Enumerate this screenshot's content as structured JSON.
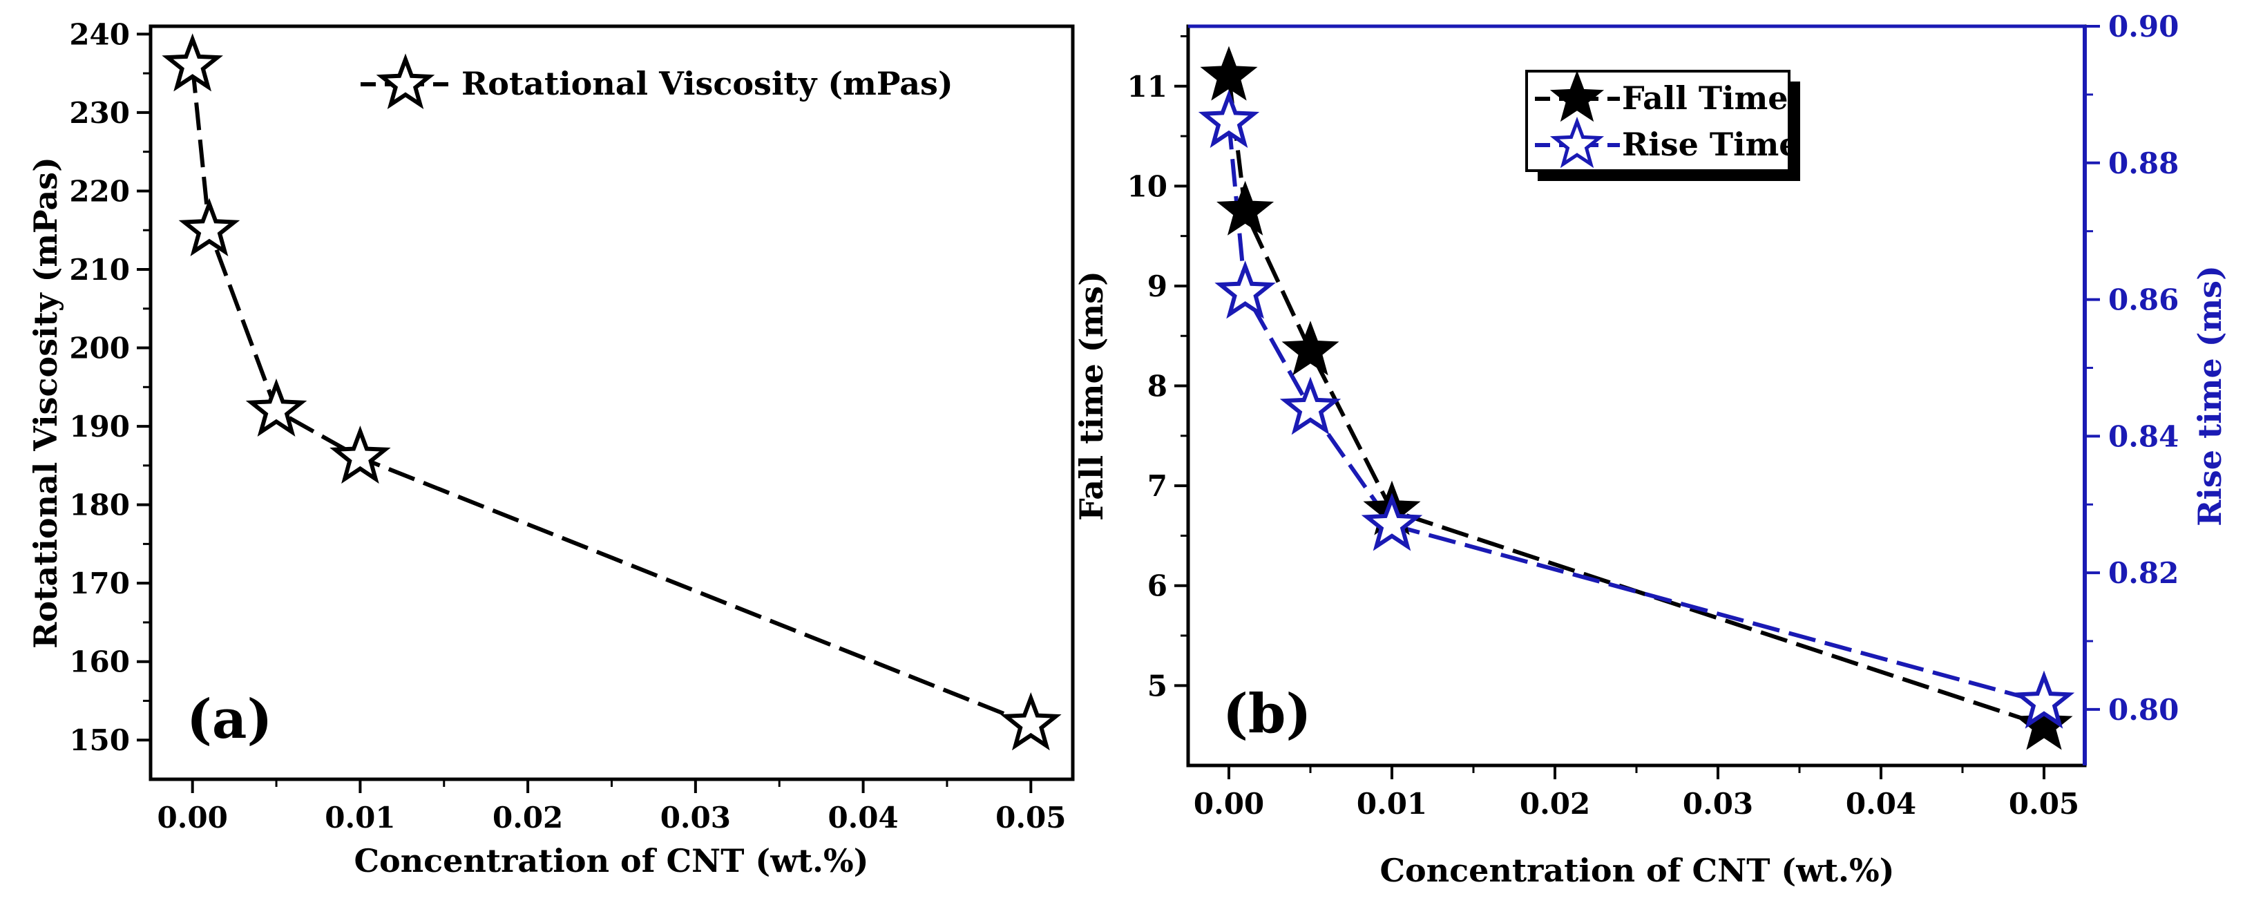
{
  "chart_data": [
    {
      "id": "a",
      "type": "line",
      "panel_label": "(a)",
      "xlabel": "Concentration of CNT (wt.%)",
      "ylabel": "Rotational Viscosity (mPas)",
      "xlim": [
        -0.0025,
        0.0525
      ],
      "ylim": [
        145,
        241
      ],
      "x_ticks": [
        0.0,
        0.01,
        0.02,
        0.03,
        0.04,
        0.05
      ],
      "x_tick_labels": [
        "0.00",
        "0.01",
        "0.02",
        "0.03",
        "0.04",
        "0.05"
      ],
      "y_ticks": [
        150,
        160,
        170,
        180,
        190,
        200,
        210,
        220,
        230,
        240
      ],
      "y_tick_labels": [
        "150",
        "160",
        "170",
        "180",
        "190",
        "200",
        "210",
        "220",
        "230",
        "240"
      ],
      "legend_position": "top-right",
      "series": [
        {
          "name": "Rotational Viscosity (mPas)",
          "color": "#000000",
          "marker": "open-star",
          "x": [
            0.0,
            0.001,
            0.005,
            0.01,
            0.05
          ],
          "y": [
            236,
            215,
            192,
            186,
            152
          ]
        }
      ]
    },
    {
      "id": "b",
      "type": "line",
      "panel_label": "(b)",
      "xlabel": "Concentration of CNT (wt.%)",
      "ylabel": "Fall time (ms)",
      "y2label": "Rise time (ms)",
      "xlim": [
        -0.0025,
        0.0525
      ],
      "ylim": [
        4.2,
        11.6
      ],
      "y2lim": [
        0.7918,
        0.9
      ],
      "x_ticks": [
        0.0,
        0.01,
        0.02,
        0.03,
        0.04,
        0.05
      ],
      "x_tick_labels": [
        "0.00",
        "0.01",
        "0.02",
        "0.03",
        "0.04",
        "0.05"
      ],
      "y_ticks": [
        5,
        6,
        7,
        8,
        9,
        10,
        11
      ],
      "y_tick_labels": [
        "5",
        "6",
        "7",
        "8",
        "9",
        "10",
        "11"
      ],
      "y2_ticks": [
        0.8,
        0.82,
        0.84,
        0.86,
        0.88,
        0.9
      ],
      "y2_tick_labels": [
        "0.80",
        "0.82",
        "0.84",
        "0.86",
        "0.88",
        "0.90"
      ],
      "right_axis_color": "#1a1ab4",
      "legend_position": "top-center",
      "series": [
        {
          "name": "Fall Time",
          "axis": "left",
          "color": "#000000",
          "marker": "filled-star",
          "x": [
            0.0,
            0.001,
            0.005,
            0.01,
            0.05
          ],
          "y": [
            11.1,
            9.75,
            8.35,
            6.75,
            4.6
          ]
        },
        {
          "name": "Rise Time",
          "axis": "right",
          "color": "#1a1ab4",
          "marker": "open-star",
          "x": [
            0.0,
            0.001,
            0.005,
            0.01,
            0.05
          ],
          "y": [
            0.886,
            0.861,
            0.844,
            0.827,
            0.801
          ]
        }
      ]
    }
  ]
}
